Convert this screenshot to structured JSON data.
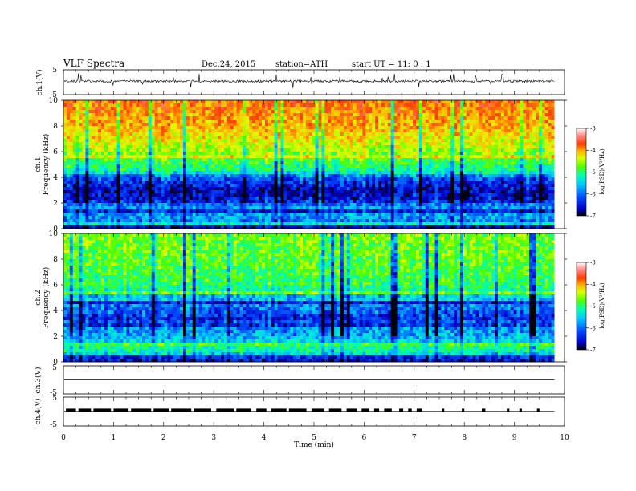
{
  "header": {
    "title": "VLF  Spectra",
    "date": "Dec.24, 2015",
    "station": "station=ATH",
    "start": "start  UT  =    11: 0  : 1"
  },
  "chart_data": [
    {
      "type": "line",
      "panel": "ch1-waveform",
      "ylabel": "ch.1(V)",
      "yticks": [
        "5",
        "-5"
      ],
      "ylim": [
        -5,
        5
      ],
      "xlim": [
        0,
        10
      ],
      "data_end_min": 9.8,
      "baseline": 0.4,
      "color": "#000000"
    },
    {
      "type": "heatmap",
      "panel": "ch1-spectrogram",
      "ylabel_ch": "ch.1",
      "ylabel": "Frequency  (kHz)",
      "yticks": [
        "10",
        "8",
        "6",
        "4",
        "2",
        "0"
      ],
      "ylim": [
        0,
        10
      ],
      "xlim": [
        0,
        10
      ],
      "data_end_min": 9.8,
      "colorbar": {
        "label": "log(PSD)(V²/Hz)",
        "ticks": [
          "-3",
          "-4",
          "-5",
          "-6",
          "-7"
        ],
        "range": [
          -7,
          -3
        ],
        "colors": [
          "#000000",
          "#0000c8",
          "#0050ff",
          "#00c8ff",
          "#00ffb4",
          "#50ff00",
          "#dcff00",
          "#ffb400",
          "#ff3c00",
          "#ff8c8c",
          "#ffffff"
        ]
      },
      "profile_log_psd": [
        {
          "f": 0.0,
          "v": -6.8
        },
        {
          "f": 0.4,
          "v": -6.1
        },
        {
          "f": 1.0,
          "v": -5.9
        },
        {
          "f": 1.8,
          "v": -6.0
        },
        {
          "f": 2.2,
          "v": -6.5
        },
        {
          "f": 3.0,
          "v": -6.6
        },
        {
          "f": 4.0,
          "v": -6.2
        },
        {
          "f": 4.5,
          "v": -5.4
        },
        {
          "f": 5.5,
          "v": -5.0
        },
        {
          "f": 6.5,
          "v": -4.6
        },
        {
          "f": 8.0,
          "v": -4.2
        },
        {
          "f": 10.0,
          "v": -3.9
        }
      ]
    },
    {
      "type": "heatmap",
      "panel": "ch2-spectrogram",
      "ylabel_ch": "ch.2",
      "ylabel": "Frequency  (kHz)",
      "yticks": [
        "10",
        "8",
        "6",
        "4",
        "2",
        "0"
      ],
      "ylim": [
        0,
        10
      ],
      "xlim": [
        0,
        10
      ],
      "data_end_min": 9.8,
      "colorbar": {
        "label": "log(PSD)(V²/Hz)",
        "ticks": [
          "-3",
          "-4",
          "-5",
          "-6",
          "-7"
        ],
        "range": [
          -7,
          -3
        ],
        "colors": [
          "#000000",
          "#0000c8",
          "#0050ff",
          "#00c8ff",
          "#00ffb4",
          "#50ff00",
          "#dcff00",
          "#ffb400",
          "#ff3c00",
          "#ff8c8c",
          "#ffffff"
        ]
      },
      "profile_log_psd": [
        {
          "f": 0.0,
          "v": -6.8
        },
        {
          "f": 0.4,
          "v": -5.9
        },
        {
          "f": 1.0,
          "v": -5.3
        },
        {
          "f": 1.8,
          "v": -5.8
        },
        {
          "f": 2.6,
          "v": -6.0
        },
        {
          "f": 3.4,
          "v": -6.4
        },
        {
          "f": 4.2,
          "v": -6.1
        },
        {
          "f": 5.0,
          "v": -5.7
        },
        {
          "f": 6.0,
          "v": -5.2
        },
        {
          "f": 8.0,
          "v": -5.0
        },
        {
          "f": 10.0,
          "v": -4.9
        }
      ]
    },
    {
      "type": "line",
      "panel": "ch3-waveform",
      "ylabel": "ch.3(V)",
      "yticks": [
        "5",
        "-5"
      ],
      "ylim": [
        -5,
        5
      ],
      "xlim": [
        0,
        10
      ],
      "data_end_min": 9.8,
      "baseline": 0.0
    },
    {
      "type": "line",
      "panel": "ch4-waveform",
      "ylabel": "ch.4(V)",
      "yticks": [
        "5",
        "-5"
      ],
      "ylim": [
        -5,
        5
      ],
      "xlim": [
        0,
        10
      ],
      "data_end_min": 9.8,
      "baseline": 0.0,
      "level_value": 0.2,
      "pulse_level": 1.0,
      "pulse_segments": [
        [
          0.05,
          0.25
        ],
        [
          0.3,
          0.55
        ],
        [
          0.6,
          0.95
        ],
        [
          1.0,
          1.3
        ],
        [
          1.35,
          1.75
        ],
        [
          1.8,
          2.1
        ],
        [
          2.15,
          2.55
        ],
        [
          2.6,
          2.95
        ],
        [
          3.05,
          3.4
        ],
        [
          3.45,
          3.75
        ],
        [
          3.85,
          4.05
        ],
        [
          4.15,
          4.45
        ],
        [
          4.5,
          4.85
        ],
        [
          4.95,
          5.2
        ],
        [
          5.3,
          5.55
        ],
        [
          5.65,
          5.85
        ],
        [
          5.95,
          6.1
        ],
        [
          6.2,
          6.3
        ],
        [
          6.4,
          6.55
        ],
        [
          6.7,
          6.78
        ],
        [
          6.88,
          6.95
        ],
        [
          7.05,
          7.15
        ],
        [
          7.55,
          7.6
        ],
        [
          7.95,
          8.0
        ],
        [
          8.35,
          8.42
        ],
        [
          8.85,
          8.9
        ],
        [
          9.1,
          9.15
        ],
        [
          9.45,
          9.5
        ]
      ]
    }
  ],
  "x_axis": {
    "label": "Time  (min)",
    "ticks": [
      "0",
      "1",
      "2",
      "3",
      "4",
      "5",
      "6",
      "7",
      "8",
      "9",
      "10"
    ],
    "range": [
      0,
      10
    ]
  }
}
